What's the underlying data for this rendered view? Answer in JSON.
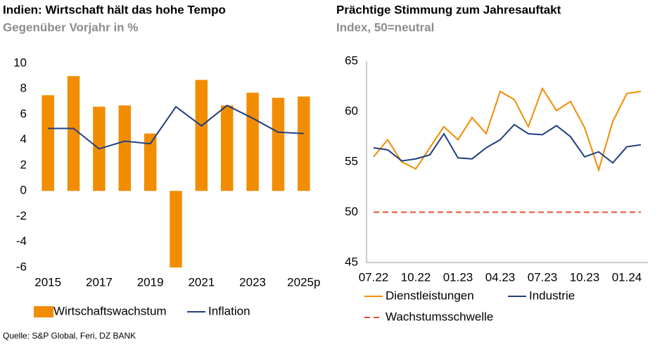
{
  "chart_data": [
    {
      "type": "bar",
      "title": "Indien: Wirtschaft hält das hohe Tempo",
      "subtitle": "Gegenüber Vorjahr in %",
      "categories": [
        "2015",
        null,
        "2017",
        null,
        "2019",
        null,
        "2021",
        null,
        "2023",
        null,
        "2025p"
      ],
      "series": [
        {
          "name": "Wirtschaftswachstum",
          "type": "bar",
          "color": "#f28c00",
          "values": [
            7.5,
            9.0,
            6.6,
            6.7,
            4.5,
            -6.0,
            8.7,
            6.7,
            7.7,
            7.3,
            7.4
          ]
        },
        {
          "name": "Inflation",
          "type": "line",
          "color": "#1f3f7f",
          "values": [
            4.9,
            4.9,
            3.3,
            3.9,
            3.7,
            6.6,
            5.1,
            6.7,
            5.7,
            4.6,
            4.5
          ]
        }
      ],
      "ylim": [
        -6,
        10
      ],
      "yticks": [
        -6,
        -4,
        -2,
        0,
        2,
        4,
        6,
        8,
        10
      ],
      "grid": false
    },
    {
      "type": "line",
      "title": "Prächtige Stimmung zum Jahresauftakt",
      "subtitle": "Index, 50=neutral",
      "categories": [
        "07.22",
        null,
        null,
        "10.22",
        null,
        null,
        "01.23",
        null,
        null,
        "04.23",
        null,
        null,
        "07.23",
        null,
        null,
        "10.23",
        null,
        null,
        "01.24",
        null
      ],
      "series": [
        {
          "name": "Dienstleistungen",
          "color": "#f28c00",
          "values": [
            55.5,
            57.2,
            55.0,
            54.3,
            56.4,
            58.5,
            57.2,
            59.4,
            57.8,
            62.0,
            61.2,
            58.5,
            62.3,
            60.1,
            61.0,
            58.4,
            54.2,
            59.0,
            61.8,
            62.0
          ]
        },
        {
          "name": "Industrie",
          "color": "#1f3f7f",
          "values": [
            56.4,
            56.2,
            55.1,
            55.3,
            55.7,
            57.8,
            55.4,
            55.3,
            56.4,
            57.2,
            58.7,
            57.8,
            57.7,
            58.6,
            57.5,
            55.5,
            56.0,
            54.9,
            56.5,
            56.7
          ]
        },
        {
          "name": "Wachstumsschwelle",
          "color": "#e0522a",
          "dashed": true,
          "values": [
            50,
            50,
            50,
            50,
            50,
            50,
            50,
            50,
            50,
            50,
            50,
            50,
            50,
            50,
            50,
            50,
            50,
            50,
            50,
            50
          ]
        }
      ],
      "ylim": [
        45,
        65
      ],
      "yticks": [
        45,
        50,
        55,
        60,
        65
      ],
      "grid": false
    }
  ],
  "source": "Quelle: S&P Global, Feri, DZ BANK"
}
